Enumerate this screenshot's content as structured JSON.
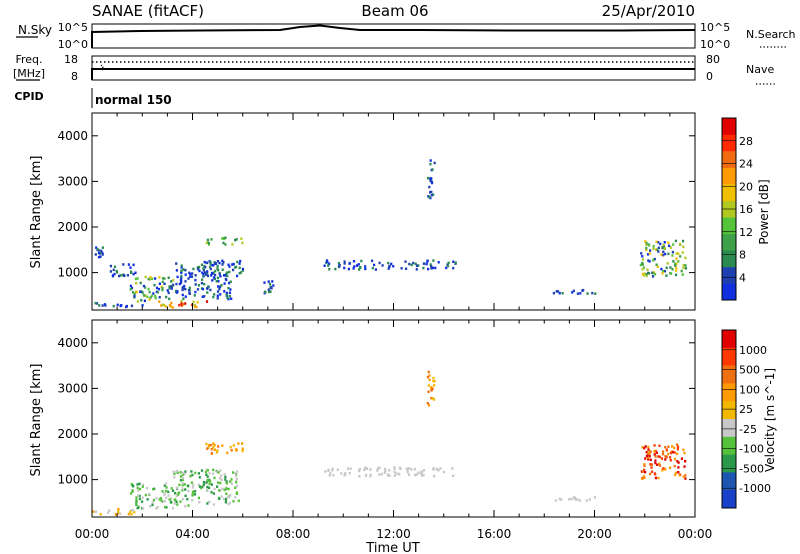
{
  "header": {
    "station": "SANAE (fitACF)",
    "beam": "Beam 06",
    "date": "25/Apr/2010"
  },
  "top_panels": {
    "nsky_label": "N.Sky",
    "nsky_ticks": [
      "10^5",
      "10^0"
    ],
    "nsearch_label": "N.Search",
    "nsearch_ticks": [
      "10^5",
      "10^0"
    ],
    "freq_label": "Freq.",
    "freq_unit": "[MHz]",
    "freq_ticks": [
      "18",
      "8"
    ],
    "nave_label": "Nave",
    "nave_ticks": [
      "80",
      "0"
    ],
    "cpid_label": "CPID",
    "cpid_value": "normal 150"
  },
  "colors": {
    "power": [
      "#1030e0",
      "#1e40b0",
      "#2a8a50",
      "#3fa04a",
      "#55c43a",
      "#b0c820",
      "#f0c000",
      "#ff9a00",
      "#f06a10",
      "#ff2a00",
      "#e00000"
    ],
    "velocity": [
      "#e00000",
      "#ff3a00",
      "#f07010",
      "#ff9a00",
      "#f2b800",
      "#c8c8c8",
      "#56c13a",
      "#2a9a4a",
      "#1e55b0",
      "#1840c8"
    ]
  },
  "chart_data": [
    {
      "type": "heatmap",
      "name": "power",
      "xlabel": "",
      "ylabel": "Slant Range [km]",
      "yticks": [
        "1000",
        "2000",
        "3000",
        "4000"
      ],
      "ylim": [
        180,
        4500
      ],
      "colorbar_label": "Power [dB]",
      "colorbar_ticks": [
        "4",
        "8",
        "12",
        "16",
        "20",
        "24",
        "28"
      ],
      "clim": [
        0,
        32
      ],
      "regions": [
        {
          "t": [
            0.0,
            2.0
          ],
          "r": [
            220,
            320
          ],
          "level": "weak"
        },
        {
          "t": [
            0.1,
            0.4
          ],
          "r": [
            1300,
            1550
          ],
          "level": "weak"
        },
        {
          "t": [
            0.7,
            1.8
          ],
          "r": [
            900,
            1200
          ],
          "level": "weak"
        },
        {
          "t": [
            1.5,
            3.2
          ],
          "r": [
            350,
            900
          ],
          "level": "mixed"
        },
        {
          "t": [
            2.6,
            4.6
          ],
          "r": [
            220,
            380
          ],
          "level": "strong"
        },
        {
          "t": [
            3.3,
            5.5
          ],
          "r": [
            400,
            1200
          ],
          "level": "weak"
        },
        {
          "t": [
            4.5,
            6.0
          ],
          "r": [
            1600,
            1750
          ],
          "level": "mid"
        },
        {
          "t": [
            4.2,
            6.0
          ],
          "r": [
            900,
            1250
          ],
          "level": "weak"
        },
        {
          "t": [
            6.8,
            7.2
          ],
          "r": [
            500,
            800
          ],
          "level": "weak"
        },
        {
          "t": [
            9.2,
            14.5
          ],
          "r": [
            1050,
            1250
          ],
          "level": "weak"
        },
        {
          "t": [
            13.3,
            13.6
          ],
          "r": [
            2500,
            3450
          ],
          "level": "weak"
        },
        {
          "t": [
            18.3,
            20.0
          ],
          "r": [
            520,
            600
          ],
          "level": "weak"
        },
        {
          "t": [
            21.8,
            23.6
          ],
          "r": [
            900,
            1700
          ],
          "level": "mixed"
        }
      ]
    },
    {
      "type": "heatmap",
      "name": "velocity",
      "xlabel": "Time UT",
      "ylabel": "Slant Range [km]",
      "xticks": [
        "00:00",
        "04:00",
        "08:00",
        "12:00",
        "16:00",
        "20:00",
        "00:00"
      ],
      "xlim": [
        0,
        24
      ],
      "yticks": [
        "1000",
        "2000",
        "3000",
        "4000"
      ],
      "ylim": [
        180,
        4500
      ],
      "colorbar_label": "Velocity [m s^-1]",
      "colorbar_ticks": [
        "1000",
        "500",
        "100",
        "25",
        "-25",
        "-100",
        "-500",
        "-1000"
      ],
      "regions": [
        {
          "t": [
            0.0,
            2.0
          ],
          "r": [
            220,
            340
          ],
          "level": "slow-away"
        },
        {
          "t": [
            1.5,
            3.2
          ],
          "r": [
            350,
            900
          ],
          "level": "toward"
        },
        {
          "t": [
            3.2,
            5.8
          ],
          "r": [
            400,
            1200
          ],
          "level": "toward"
        },
        {
          "t": [
            4.5,
            6.0
          ],
          "r": [
            1550,
            1800
          ],
          "level": "away"
        },
        {
          "t": [
            9.2,
            14.5
          ],
          "r": [
            1050,
            1250
          ],
          "level": "near-zero"
        },
        {
          "t": [
            13.3,
            13.6
          ],
          "r": [
            2500,
            3450
          ],
          "level": "away"
        },
        {
          "t": [
            18.3,
            20.0
          ],
          "r": [
            520,
            600
          ],
          "level": "near-zero"
        },
        {
          "t": [
            21.8,
            23.6
          ],
          "r": [
            1000,
            1750
          ],
          "level": "strong-away"
        }
      ]
    }
  ]
}
